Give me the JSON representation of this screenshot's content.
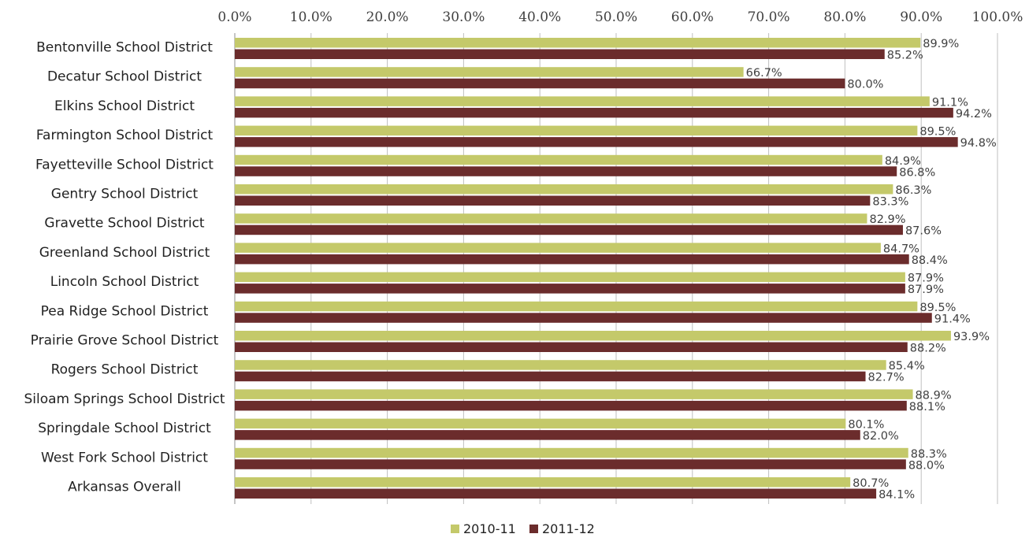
{
  "chart_data": {
    "type": "bar",
    "orientation": "horizontal",
    "categories": [
      "Bentonville School District",
      "Decatur School District",
      "Elkins School District",
      "Farmington School District",
      "Fayetteville School District",
      "Gentry School District",
      "Gravette School District",
      "Greenland School District",
      "Lincoln School District",
      "Pea Ridge School District",
      "Prairie Grove School District",
      "Rogers School District",
      "Siloam Springs School District",
      "Springdale School District",
      "West Fork School District",
      "Arkansas Overall"
    ],
    "series": [
      {
        "name": "2010-11",
        "color": "#c4c96a",
        "values": [
          89.9,
          66.7,
          91.1,
          89.5,
          84.9,
          86.3,
          82.9,
          84.7,
          87.9,
          89.5,
          93.9,
          85.4,
          88.9,
          80.1,
          88.3,
          80.7
        ],
        "labels": [
          "89.9%",
          "66.7%",
          "91.1%",
          "89.5%",
          "84.9%",
          "86.3%",
          "82.9%",
          "84.7%",
          "87.9%",
          "89.5%",
          "93.9%",
          "85.4%",
          "88.9%",
          "80.1%",
          "88.3%",
          "80.7%"
        ]
      },
      {
        "name": "2011-12",
        "color": "#6b2c2c",
        "values": [
          85.2,
          80.0,
          94.2,
          94.8,
          86.8,
          83.3,
          87.6,
          88.4,
          87.9,
          91.4,
          88.2,
          82.7,
          88.1,
          82.0,
          88.0,
          84.1
        ],
        "labels": [
          "85.2%",
          "80.0%",
          "94.2%",
          "94.8%",
          "86.8%",
          "83.3%",
          "87.6%",
          "88.4%",
          "87.9%",
          "91.4%",
          "88.2%",
          "82.7%",
          "88.1%",
          "82.0%",
          "88.0%",
          "84.1%"
        ]
      }
    ],
    "xlim": [
      0,
      100
    ],
    "x_ticks": [
      "0.0%",
      "10.0%",
      "20.0%",
      "30.0%",
      "40.0%",
      "50.0%",
      "60.0%",
      "70.0%",
      "80.0%",
      "90.0%",
      "100.0%"
    ],
    "x_axis_position": "top",
    "grid": true,
    "gridline_color": "#bfbfbf",
    "legend_position": "bottom",
    "title": "",
    "xlabel": "",
    "ylabel": ""
  }
}
